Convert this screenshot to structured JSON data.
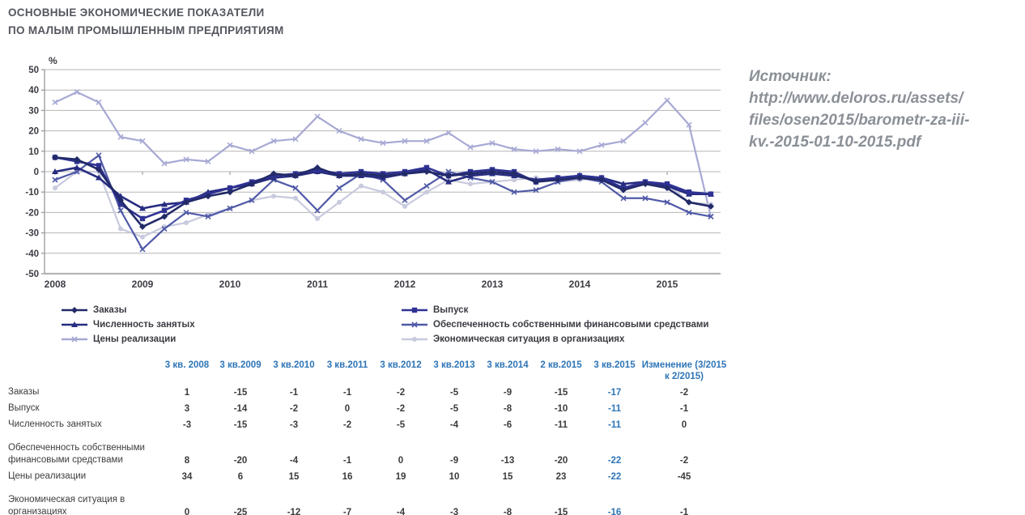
{
  "header": {
    "title_line1": "ОСНОВНЫЕ ЭКОНОМИЧЕСКИЕ ПОКАЗАТЕЛИ",
    "title_line2": "ПО МАЛЫМ ПРОМЫШЛЕННЫМ ПРЕДПРИЯТИЯМ"
  },
  "source": {
    "lines": [
      "Источник:",
      "http://www.deloros.ru/assets/",
      "files/osen2015/barometr-za-iii-",
      "kv.-2015-01-10-2015.pdf"
    ]
  },
  "chart_data": {
    "type": "line",
    "ylabel": "%",
    "ylim": [
      -50,
      50
    ],
    "ytick_step": 10,
    "grid": true,
    "legend_position": "bottom",
    "x_years": [
      "2008",
      "2009",
      "2010",
      "2011",
      "2012",
      "2013",
      "2014",
      "2015"
    ],
    "points_per_year": 4,
    "colors": {
      "grid": "#b5b5b5",
      "axis": "#a0a0a6",
      "tick_text": "#3c3c44"
    },
    "series": [
      {
        "name": "Заказы",
        "marker": "diamond",
        "color": "#222a68",
        "width": 2.6,
        "values": [
          7,
          6,
          1,
          -14,
          -27,
          -22,
          -15,
          -12,
          -10,
          -6,
          -1,
          -2,
          2,
          -2,
          -1,
          -2,
          -1,
          0,
          -2,
          -1,
          0,
          -1,
          -5,
          -4,
          -3,
          -4,
          -9,
          -6,
          -8,
          -15,
          -17
        ]
      },
      {
        "name": "Выпуск",
        "marker": "square",
        "color": "#2f3293",
        "width": 2.6,
        "values": [
          7,
          5,
          3,
          -16,
          -23,
          -19,
          -14,
          -11,
          -8,
          -5,
          -2,
          -1,
          1,
          -1,
          0,
          -1,
          0,
          2,
          -2,
          0,
          1,
          0,
          -5,
          -3,
          -2,
          -3,
          -8,
          -5,
          -6,
          -10,
          -11
        ]
      },
      {
        "name": "Численность занятых",
        "marker": "triangle",
        "color": "#272c80",
        "width": 2.6,
        "values": [
          0,
          2,
          -3,
          -12,
          -18,
          -16,
          -15,
          -10,
          -8,
          -6,
          -3,
          -2,
          0,
          -2,
          -2,
          -3,
          -1,
          1,
          -5,
          -2,
          -1,
          -2,
          -4,
          -3,
          -2,
          -3,
          -6,
          -5,
          -7,
          -11,
          -11
        ]
      },
      {
        "name": "Обеспеченность собственными финансовыми средствами",
        "marker": "x",
        "color": "#4f59a7",
        "width": 2.2,
        "values": [
          -4,
          0,
          8,
          -19,
          -38,
          -28,
          -20,
          -22,
          -18,
          -14,
          -4,
          -8,
          -19,
          -8,
          -1,
          -4,
          -14,
          -7,
          0,
          -3,
          -5,
          -10,
          -9,
          -5,
          -3,
          -5,
          -13,
          -13,
          -15,
          -20,
          -22
        ]
      },
      {
        "name": "Цены реализации",
        "marker": "x",
        "color": "#a7a9d4",
        "width": 2.2,
        "values": [
          34,
          39,
          34,
          17,
          15,
          4,
          6,
          5,
          13,
          10,
          15,
          16,
          27,
          20,
          16,
          14,
          15,
          15,
          19,
          12,
          14,
          11,
          10,
          11,
          10,
          13,
          15,
          24,
          35,
          23,
          -22
        ]
      },
      {
        "name": "Экономическая ситуация в организациях",
        "marker": "circle",
        "color": "#c8cade",
        "width": 2.2,
        "values": [
          -8,
          0,
          0,
          -28,
          -32,
          -27,
          -25,
          -21,
          -18,
          -14,
          -12,
          -13,
          -23,
          -15,
          -7,
          -10,
          -17,
          -10,
          -4,
          -6,
          -5,
          -4,
          -3,
          -5,
          -4,
          -3,
          -8,
          -6,
          -6,
          -15,
          -16
        ]
      }
    ]
  },
  "table": {
    "columns": [
      "3 кв. 2008",
      "3 кв.2009",
      "3 кв.2010",
      "3 кв.2011",
      "3 кв.2012",
      "3 кв.2013",
      "3 кв.2014",
      "2 кв.2015",
      "3 кв.2015",
      "Изменение (3/2015 к 2/2015)"
    ],
    "highlight_column_index": 8,
    "highlight_color": "#2e75b6",
    "rows": [
      {
        "label": "Заказы",
        "tall": false,
        "values": [
          1,
          -15,
          -1,
          -1,
          -2,
          -5,
          -9,
          -15,
          -17,
          -2
        ]
      },
      {
        "label": "Выпуск",
        "tall": false,
        "values": [
          3,
          -14,
          -2,
          0,
          -2,
          -5,
          -8,
          -10,
          -11,
          -1
        ]
      },
      {
        "label": "Численность занятых",
        "tall": false,
        "values": [
          -3,
          -15,
          -3,
          -2,
          -5,
          -4,
          -6,
          -11,
          -11,
          0
        ]
      },
      {
        "label": "Обеспеченность собственными финансовыми средствами",
        "tall": true,
        "values": [
          8,
          -20,
          -4,
          -1,
          0,
          -9,
          -13,
          -20,
          -22,
          -2
        ]
      },
      {
        "label": "Цены реализации",
        "tall": false,
        "values": [
          34,
          6,
          15,
          16,
          19,
          10,
          15,
          23,
          -22,
          -45
        ]
      },
      {
        "label": "Экономическая ситуация в организациях",
        "tall": true,
        "values": [
          0,
          -25,
          -12,
          -7,
          -4,
          -3,
          -8,
          -15,
          -16,
          -1
        ]
      }
    ]
  }
}
